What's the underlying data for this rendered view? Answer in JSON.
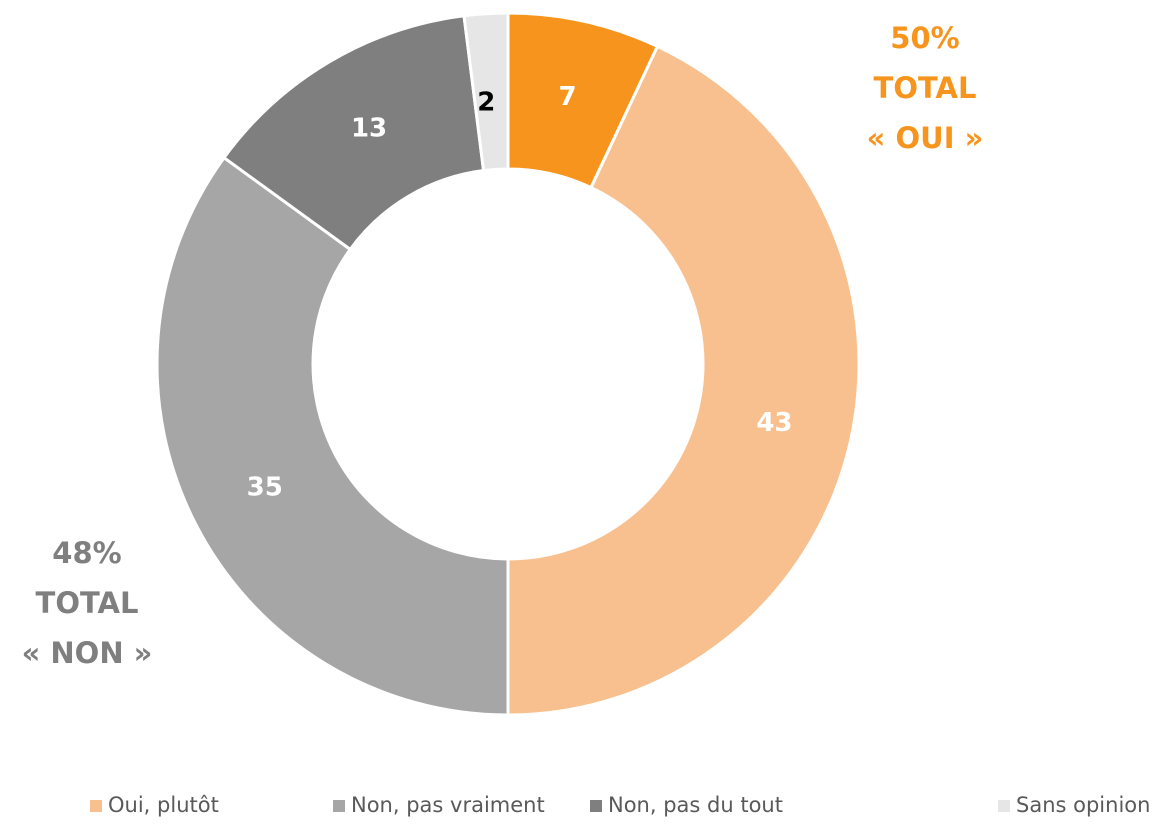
{
  "chart_data": {
    "type": "donut",
    "categories": [
      null,
      "Oui, plutôt",
      "Non, pas vraiment",
      "Non, pas du tout",
      "Sans opinion"
    ],
    "values": [
      7,
      43,
      35,
      13,
      2
    ],
    "colors": [
      "#f7941d",
      "#f9c08f",
      "#a6a6a6",
      "#7f7f7f",
      "#e6e6e6"
    ],
    "label_colors": [
      "#ffffff",
      "#ffffff",
      "#ffffff",
      "#ffffff",
      "#000000"
    ],
    "annotations": [
      {
        "lines": [
          "50%",
          "TOTAL",
          "« OUI »"
        ],
        "color": "#f7941d"
      },
      {
        "lines": [
          "48%",
          "TOTAL",
          "« NON »"
        ],
        "color": "#7f7f7f"
      }
    ],
    "legend": "bottom"
  }
}
